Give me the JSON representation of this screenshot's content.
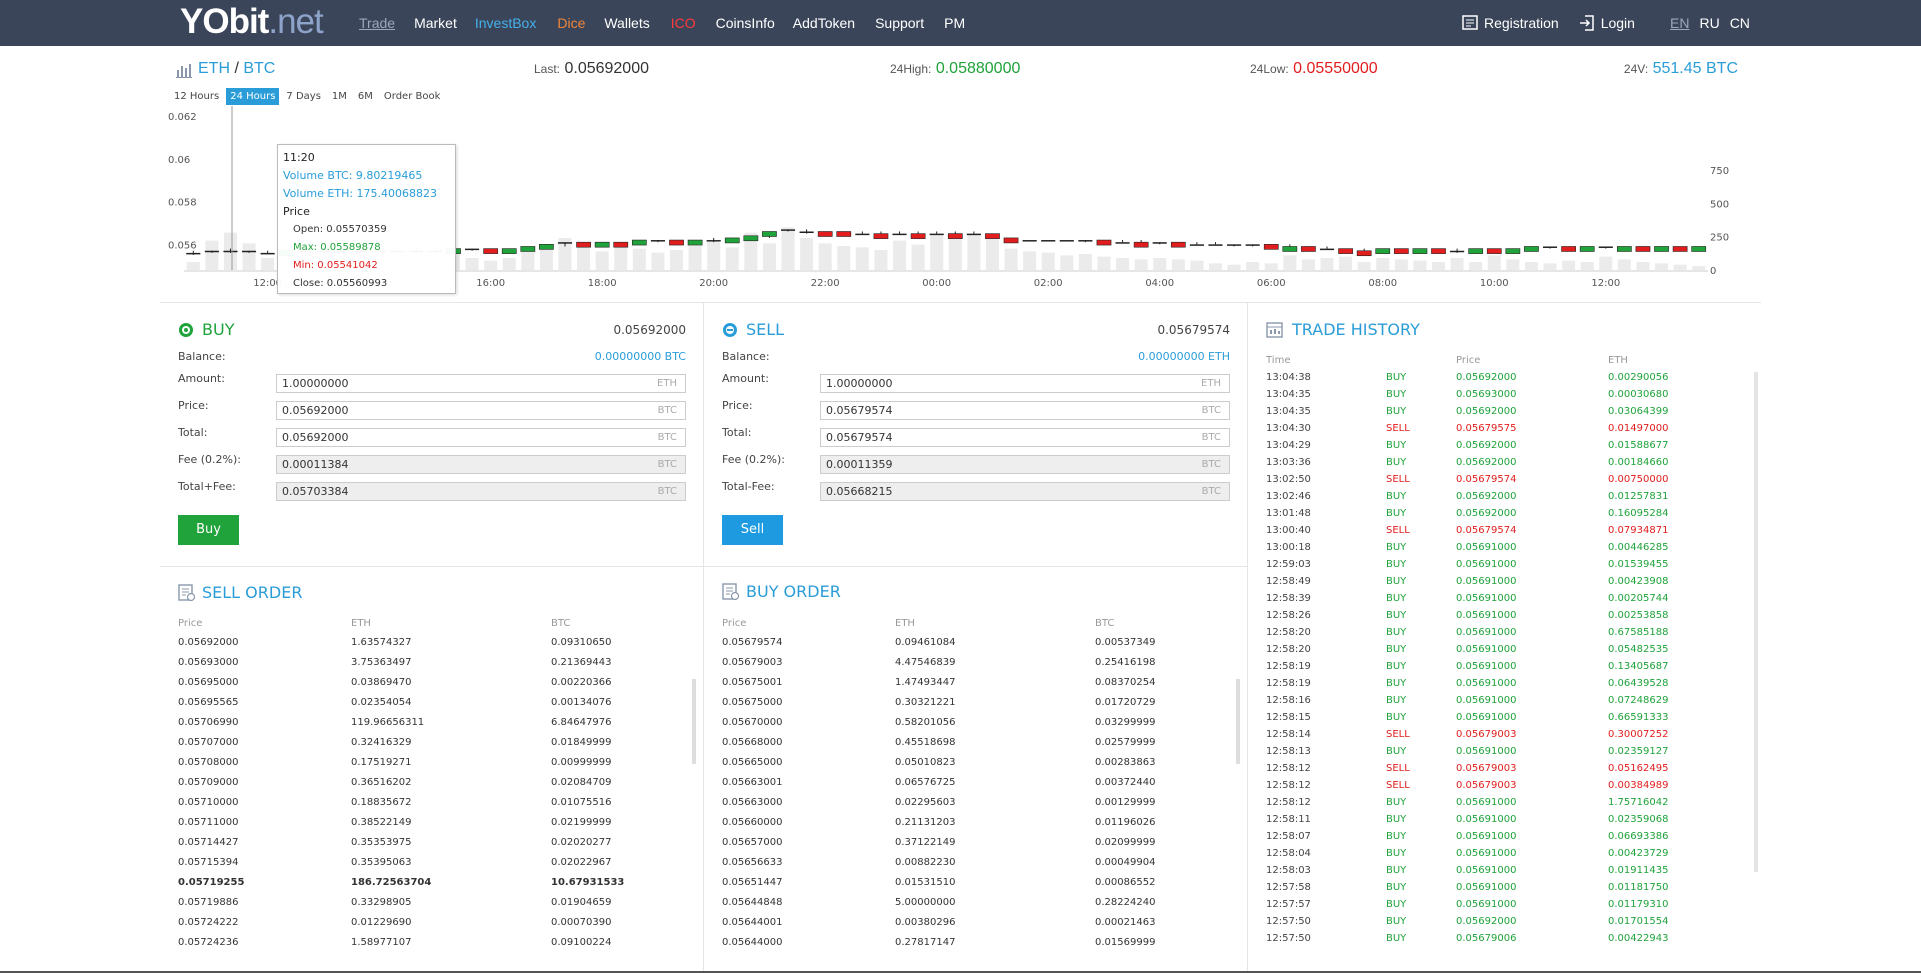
{
  "nav": {
    "logo_a": "YO",
    "logo_b": "bit",
    "logo_c": ".net",
    "items": [
      {
        "label": "Trade",
        "color": "#9aa7bd",
        "u": true
      },
      {
        "label": "Market",
        "color": "#ffffff"
      },
      {
        "label": "InvestBox",
        "color": "#46b0ea"
      },
      {
        "label": "Dice",
        "color": "#f1863b"
      },
      {
        "label": "Wallets",
        "color": "#ffffff"
      },
      {
        "label": "ICO",
        "color": "#ff3b3b"
      },
      {
        "label": "CoinsInfo",
        "color": "#ffffff"
      },
      {
        "label": "AddToken",
        "color": "#ffffff"
      },
      {
        "label": "Support",
        "color": "#ffffff"
      },
      {
        "label": "PM",
        "color": "#ffffff"
      }
    ],
    "registration": "Registration",
    "login": "Login",
    "langs": [
      "EN",
      "RU",
      "CN"
    ]
  },
  "pair": {
    "base": "ETH",
    "sep": "/",
    "quote": "BTC",
    "last_label": "Last:",
    "last": "0.05692000",
    "high_label": "24High:",
    "high": "0.05880000",
    "low_label": "24Low:",
    "low": "0.05550000",
    "vol_label": "24V:",
    "vol": "551.45 BTC"
  },
  "tabs": [
    "12 Hours",
    "24 Hours",
    "7 Days",
    "1M",
    "6M",
    "Order Book"
  ],
  "chart_data": {
    "type": "candlestick",
    "ylim": [
      0.0548,
      0.062
    ],
    "y_ticks": [
      "0.062",
      "0.06",
      "0.058",
      "0.056"
    ],
    "y_tick_vals": [
      0.062,
      0.06,
      0.058,
      0.056
    ],
    "vol_ylim": [
      0,
      750
    ],
    "vol_ticks": [
      "750",
      "500",
      "250",
      "0"
    ],
    "vol_tick_vals": [
      750,
      500,
      250,
      0
    ],
    "x_ticks": [
      "12:00",
      "16:00",
      "18:00",
      "20:00",
      "22:00",
      "00:00",
      "02:00",
      "04:00",
      "06:00",
      "08:00",
      "10:00",
      "12:00"
    ],
    "x_tick_idx": [
      4,
      16,
      22,
      28,
      34,
      40,
      46,
      52,
      58,
      64,
      70,
      76
    ],
    "candles": [
      [
        0.0556,
        0.0557,
        0.0555,
        0.0556,
        0
      ],
      [
        0.0557,
        0.0557,
        0.0556,
        0.0557,
        0
      ],
      [
        0.0557,
        0.0558,
        0.0556,
        0.0557,
        0
      ],
      [
        0.0557,
        0.0557,
        0.0556,
        0.0557,
        0
      ],
      [
        0.0556,
        0.0557,
        0.0556,
        0.0556,
        0
      ],
      [
        0.0557,
        0.0558,
        0.0556,
        0.0557,
        1
      ],
      [
        0.0557,
        0.0557,
        0.0556,
        0.0557,
        0
      ],
      [
        0.0557,
        0.0557,
        0.0556,
        0.0557,
        0
      ],
      [
        0.0557,
        0.0558,
        0.0556,
        0.0557,
        0
      ],
      [
        0.0557,
        0.0558,
        0.0556,
        0.0557,
        0
      ],
      [
        0.0557,
        0.0557,
        0.0556,
        0.0557,
        0
      ],
      [
        0.0557,
        0.0557,
        0.0556,
        0.0557,
        0
      ],
      [
        0.0557,
        0.0558,
        0.0556,
        0.0557,
        0
      ],
      [
        0.0557,
        0.0558,
        0.0556,
        0.0557,
        0
      ],
      [
        0.0557,
        0.0558,
        0.0556,
        0.0558,
        1
      ],
      [
        0.0558,
        0.0558,
        0.0557,
        0.0558,
        0
      ],
      [
        0.0558,
        0.0558,
        0.0557,
        0.0557,
        -1
      ],
      [
        0.0557,
        0.0558,
        0.0557,
        0.0558,
        1
      ],
      [
        0.0558,
        0.0559,
        0.0557,
        0.0559,
        1
      ],
      [
        0.0559,
        0.056,
        0.0558,
        0.056,
        1
      ],
      [
        0.056,
        0.0561,
        0.0559,
        0.0561,
        0
      ],
      [
        0.0561,
        0.0561,
        0.056,
        0.056,
        -1
      ],
      [
        0.056,
        0.0561,
        0.056,
        0.0561,
        1
      ],
      [
        0.0561,
        0.0561,
        0.056,
        0.056,
        -1
      ],
      [
        0.056,
        0.0562,
        0.056,
        0.0562,
        1
      ],
      [
        0.0562,
        0.0562,
        0.0561,
        0.0562,
        0
      ],
      [
        0.0562,
        0.0562,
        0.0561,
        0.0561,
        -1
      ],
      [
        0.0561,
        0.0562,
        0.0561,
        0.0562,
        1
      ],
      [
        0.0562,
        0.0563,
        0.0561,
        0.0562,
        0
      ],
      [
        0.0562,
        0.0563,
        0.0562,
        0.0563,
        1
      ],
      [
        0.0563,
        0.0564,
        0.0562,
        0.0564,
        1
      ],
      [
        0.0564,
        0.0566,
        0.0563,
        0.0566,
        1
      ],
      [
        0.0567,
        0.0567,
        0.0566,
        0.0566,
        0
      ],
      [
        0.0566,
        0.0567,
        0.0565,
        0.0566,
        0
      ],
      [
        0.0566,
        0.0566,
        0.0565,
        0.0565,
        -1
      ],
      [
        0.0566,
        0.0566,
        0.0565,
        0.0565,
        -1
      ],
      [
        0.0565,
        0.0566,
        0.0565,
        0.0565,
        0
      ],
      [
        0.0565,
        0.0566,
        0.0565,
        0.0565,
        -1
      ],
      [
        0.0565,
        0.0566,
        0.0565,
        0.0565,
        0
      ],
      [
        0.0565,
        0.0566,
        0.0565,
        0.0565,
        -1
      ],
      [
        0.0565,
        0.0566,
        0.0565,
        0.0565,
        0
      ],
      [
        0.0565,
        0.0566,
        0.0565,
        0.0565,
        -1
      ],
      [
        0.0565,
        0.0566,
        0.0565,
        0.0565,
        0
      ],
      [
        0.0565,
        0.0565,
        0.0564,
        0.0564,
        -1
      ],
      [
        0.0563,
        0.0563,
        0.0562,
        0.0562,
        -1
      ],
      [
        0.0562,
        0.0562,
        0.0562,
        0.0562,
        0
      ],
      [
        0.0562,
        0.0562,
        0.0562,
        0.0562,
        0
      ],
      [
        0.0562,
        0.0562,
        0.0562,
        0.0562,
        0
      ],
      [
        0.0562,
        0.0562,
        0.0561,
        0.0562,
        0
      ],
      [
        0.0562,
        0.0562,
        0.0561,
        0.0561,
        -1
      ],
      [
        0.0561,
        0.0562,
        0.0561,
        0.0561,
        0
      ],
      [
        0.0561,
        0.0562,
        0.0561,
        0.0561,
        -1
      ],
      [
        0.0561,
        0.0561,
        0.056,
        0.0561,
        0
      ],
      [
        0.0561,
        0.0561,
        0.056,
        0.056,
        -1
      ],
      [
        0.056,
        0.0561,
        0.056,
        0.056,
        0
      ],
      [
        0.056,
        0.0561,
        0.056,
        0.056,
        0
      ],
      [
        0.056,
        0.056,
        0.0559,
        0.056,
        0
      ],
      [
        0.056,
        0.056,
        0.0559,
        0.056,
        0
      ],
      [
        0.056,
        0.056,
        0.0559,
        0.0559,
        -1
      ],
      [
        0.0559,
        0.056,
        0.0559,
        0.0559,
        1
      ],
      [
        0.0559,
        0.0559,
        0.0558,
        0.0558,
        -1
      ],
      [
        0.0558,
        0.0559,
        0.0558,
        0.0558,
        0
      ],
      [
        0.0558,
        0.0558,
        0.0557,
        0.0557,
        -1
      ],
      [
        0.0557,
        0.0558,
        0.0557,
        0.0557,
        -1
      ],
      [
        0.0557,
        0.0558,
        0.0557,
        0.0558,
        1
      ],
      [
        0.0558,
        0.0558,
        0.0557,
        0.0557,
        -1
      ],
      [
        0.0557,
        0.0558,
        0.0557,
        0.0558,
        1
      ],
      [
        0.0558,
        0.0558,
        0.0557,
        0.0557,
        -1
      ],
      [
        0.0557,
        0.0558,
        0.0556,
        0.0557,
        0
      ],
      [
        0.0557,
        0.0558,
        0.0557,
        0.0558,
        1
      ],
      [
        0.0558,
        0.0558,
        0.0557,
        0.0557,
        -1
      ],
      [
        0.0557,
        0.0558,
        0.0557,
        0.0558,
        1
      ],
      [
        0.0558,
        0.0559,
        0.0557,
        0.0559,
        1
      ],
      [
        0.0559,
        0.0559,
        0.0558,
        0.0559,
        0
      ],
      [
        0.0559,
        0.0559,
        0.0558,
        0.0558,
        -1
      ],
      [
        0.0558,
        0.0559,
        0.0558,
        0.0559,
        1
      ],
      [
        0.0559,
        0.0559,
        0.0558,
        0.0559,
        0
      ],
      [
        0.0559,
        0.0559,
        0.0558,
        0.0559,
        1
      ],
      [
        0.0559,
        0.0559,
        0.0558,
        0.0558,
        -1
      ],
      [
        0.0558,
        0.0559,
        0.0558,
        0.0559,
        1
      ],
      [
        0.0559,
        0.0559,
        0.0558,
        0.0558,
        -1
      ],
      [
        0.0558,
        0.0559,
        0.0558,
        0.0559,
        1
      ]
    ],
    "volumes": [
      60,
      220,
      280,
      200,
      90,
      540,
      60,
      40,
      50,
      60,
      40,
      50,
      70,
      80,
      120,
      90,
      70,
      90,
      150,
      180,
      240,
      170,
      140,
      180,
      160,
      130,
      150,
      180,
      210,
      170,
      280,
      200,
      320,
      240,
      200,
      180,
      170,
      150,
      220,
      190,
      260,
      280,
      270,
      250,
      160,
      140,
      130,
      110,
      120,
      100,
      90,
      80,
      90,
      80,
      70,
      50,
      40,
      60,
      50,
      110,
      80,
      90,
      100,
      60,
      90,
      80,
      70,
      60,
      90,
      60,
      110,
      80,
      60,
      50,
      70,
      60,
      100,
      80,
      60,
      50,
      40,
      30
    ],
    "tooltip": {
      "time": "11:20",
      "vol_btc": "Volume BTC: 9.80219465",
      "vol_eth": "Volume ETH: 175.40068823",
      "price": "Price",
      "open": "Open: 0.05570359",
      "max": "Max: 0.05589878",
      "min": "Min: 0.05541042",
      "close": "Close: 0.05560993"
    }
  },
  "buy": {
    "title": "BUY",
    "price": "0.05692000",
    "balance_label": "Balance:",
    "balance": "0.00000000 BTC",
    "amount_label": "Amount:",
    "amount": "1.00000000",
    "amount_cur": "ETH",
    "price_label": "Price:",
    "price_val": "0.05692000",
    "price_cur": "BTC",
    "total_label": "Total:",
    "total": "0.05692000",
    "total_cur": "BTC",
    "fee_label": "Fee (0.2%):",
    "fee": "0.00011384",
    "fee_cur": "BTC",
    "tf_label": "Total+Fee:",
    "tf": "0.05703384",
    "tf_cur": "BTC",
    "button": "Buy",
    "color": "#1fa33a"
  },
  "sell": {
    "title": "SELL",
    "price": "0.05679574",
    "balance_label": "Balance:",
    "balance": "0.00000000 ETH",
    "amount_label": "Amount:",
    "amount": "1.00000000",
    "amount_cur": "ETH",
    "price_label": "Price:",
    "price_val": "0.05679574",
    "price_cur": "BTC",
    "total_label": "Total:",
    "total": "0.05679574",
    "total_cur": "BTC",
    "fee_label": "Fee (0.2%):",
    "fee": "0.00011359",
    "fee_cur": "BTC",
    "tf_label": "Total-Fee:",
    "tf": "0.05668215",
    "tf_cur": "BTC",
    "button": "Sell",
    "color": "#1e9be0"
  },
  "sell_order": {
    "title": "SELL ORDER",
    "headers": [
      "Price",
      "ETH",
      "BTC"
    ],
    "rows": [
      [
        "0.05692000",
        "1.63574327",
        "0.09310650"
      ],
      [
        "0.05693000",
        "3.75363497",
        "0.21369443"
      ],
      [
        "0.05695000",
        "0.03869470",
        "0.00220366"
      ],
      [
        "0.05695565",
        "0.02354054",
        "0.00134076"
      ],
      [
        "0.05706990",
        "119.96656311",
        "6.84647976"
      ],
      [
        "0.05707000",
        "0.32416329",
        "0.01849999"
      ],
      [
        "0.05708000",
        "0.17519271",
        "0.00999999"
      ],
      [
        "0.05709000",
        "0.36516202",
        "0.02084709"
      ],
      [
        "0.05710000",
        "0.18835672",
        "0.01075516"
      ],
      [
        "0.05711000",
        "0.38522149",
        "0.02199999"
      ],
      [
        "0.05714427",
        "0.35353975",
        "0.02020277"
      ],
      [
        "0.05715394",
        "0.35395063",
        "0.02022967"
      ],
      [
        "0.05719255",
        "186.72563704",
        "10.67931533"
      ],
      [
        "0.05719886",
        "0.33298905",
        "0.01904659"
      ],
      [
        "0.05724222",
        "0.01229690",
        "0.00070390"
      ],
      [
        "0.05724236",
        "1.58977107",
        "0.09100224"
      ]
    ],
    "bold_row": 12
  },
  "buy_order": {
    "title": "BUY ORDER",
    "headers": [
      "Price",
      "ETH",
      "BTC"
    ],
    "rows": [
      [
        "0.05679574",
        "0.09461084",
        "0.00537349"
      ],
      [
        "0.05679003",
        "4.47546839",
        "0.25416198"
      ],
      [
        "0.05675001",
        "1.47493447",
        "0.08370254"
      ],
      [
        "0.05675000",
        "0.30321221",
        "0.01720729"
      ],
      [
        "0.05670000",
        "0.58201056",
        "0.03299999"
      ],
      [
        "0.05668000",
        "0.45518698",
        "0.02579999"
      ],
      [
        "0.05665000",
        "0.05010823",
        "0.00283863"
      ],
      [
        "0.05663001",
        "0.06576725",
        "0.00372440"
      ],
      [
        "0.05663000",
        "0.02295603",
        "0.00129999"
      ],
      [
        "0.05660000",
        "0.21131203",
        "0.01196026"
      ],
      [
        "0.05657000",
        "0.37122149",
        "0.02099999"
      ],
      [
        "0.05656633",
        "0.00882230",
        "0.00049904"
      ],
      [
        "0.05651447",
        "0.01531510",
        "0.00086552"
      ],
      [
        "0.05644848",
        "5.00000000",
        "0.28224240"
      ],
      [
        "0.05644001",
        "0.00380296",
        "0.00021463"
      ],
      [
        "0.05644000",
        "0.27817147",
        "0.01569999"
      ]
    ]
  },
  "trade_history": {
    "title": "TRADE HISTORY",
    "headers": [
      "Time",
      "",
      "Price",
      "ETH"
    ],
    "rows": [
      [
        "13:04:38",
        "BUY",
        "0.05692000",
        "0.00290056"
      ],
      [
        "13:04:35",
        "BUY",
        "0.05693000",
        "0.00030680"
      ],
      [
        "13:04:35",
        "BUY",
        "0.05692000",
        "0.03064399"
      ],
      [
        "13:04:30",
        "SELL",
        "0.05679575",
        "0.01497000"
      ],
      [
        "13:04:29",
        "BUY",
        "0.05692000",
        "0.01588677"
      ],
      [
        "13:03:36",
        "BUY",
        "0.05692000",
        "0.00184660"
      ],
      [
        "13:02:50",
        "SELL",
        "0.05679574",
        "0.00750000"
      ],
      [
        "13:02:46",
        "BUY",
        "0.05692000",
        "0.01257831"
      ],
      [
        "13:01:48",
        "BUY",
        "0.05692000",
        "0.16095284"
      ],
      [
        "13:00:40",
        "SELL",
        "0.05679574",
        "0.07934871"
      ],
      [
        "13:00:18",
        "BUY",
        "0.05691000",
        "0.00446285"
      ],
      [
        "12:59:03",
        "BUY",
        "0.05691000",
        "0.01539455"
      ],
      [
        "12:58:49",
        "BUY",
        "0.05691000",
        "0.00423908"
      ],
      [
        "12:58:39",
        "BUY",
        "0.05691000",
        "0.00205744"
      ],
      [
        "12:58:26",
        "BUY",
        "0.05691000",
        "0.00253858"
      ],
      [
        "12:58:20",
        "BUY",
        "0.05691000",
        "0.67585188"
      ],
      [
        "12:58:20",
        "BUY",
        "0.05691000",
        "0.05482535"
      ],
      [
        "12:58:19",
        "BUY",
        "0.05691000",
        "0.13405687"
      ],
      [
        "12:58:19",
        "BUY",
        "0.05691000",
        "0.06439528"
      ],
      [
        "12:58:16",
        "BUY",
        "0.05691000",
        "0.07248629"
      ],
      [
        "12:58:15",
        "BUY",
        "0.05691000",
        "0.66591333"
      ],
      [
        "12:58:14",
        "SELL",
        "0.05679003",
        "0.30007252"
      ],
      [
        "12:58:13",
        "BUY",
        "0.05691000",
        "0.02359127"
      ],
      [
        "12:58:12",
        "SELL",
        "0.05679003",
        "0.05162495"
      ],
      [
        "12:58:12",
        "SELL",
        "0.05679003",
        "0.00384989"
      ],
      [
        "12:58:12",
        "BUY",
        "0.05691000",
        "1.75716042"
      ],
      [
        "12:58:11",
        "BUY",
        "0.05691000",
        "0.02359068"
      ],
      [
        "12:58:07",
        "BUY",
        "0.05691000",
        "0.06693386"
      ],
      [
        "12:58:04",
        "BUY",
        "0.05691000",
        "0.00423729"
      ],
      [
        "12:58:03",
        "BUY",
        "0.05691000",
        "0.01911435"
      ],
      [
        "12:57:58",
        "BUY",
        "0.05691000",
        "0.01181750"
      ],
      [
        "12:57:57",
        "BUY",
        "0.05691000",
        "0.01179310"
      ],
      [
        "12:57:50",
        "BUY",
        "0.05692000",
        "0.01701554"
      ],
      [
        "12:57:50",
        "BUY",
        "0.05679006",
        "0.00422943"
      ]
    ]
  },
  "colors": {
    "green": "#1fa33a",
    "red": "#e21d1d",
    "blue": "#2a9dd8"
  }
}
